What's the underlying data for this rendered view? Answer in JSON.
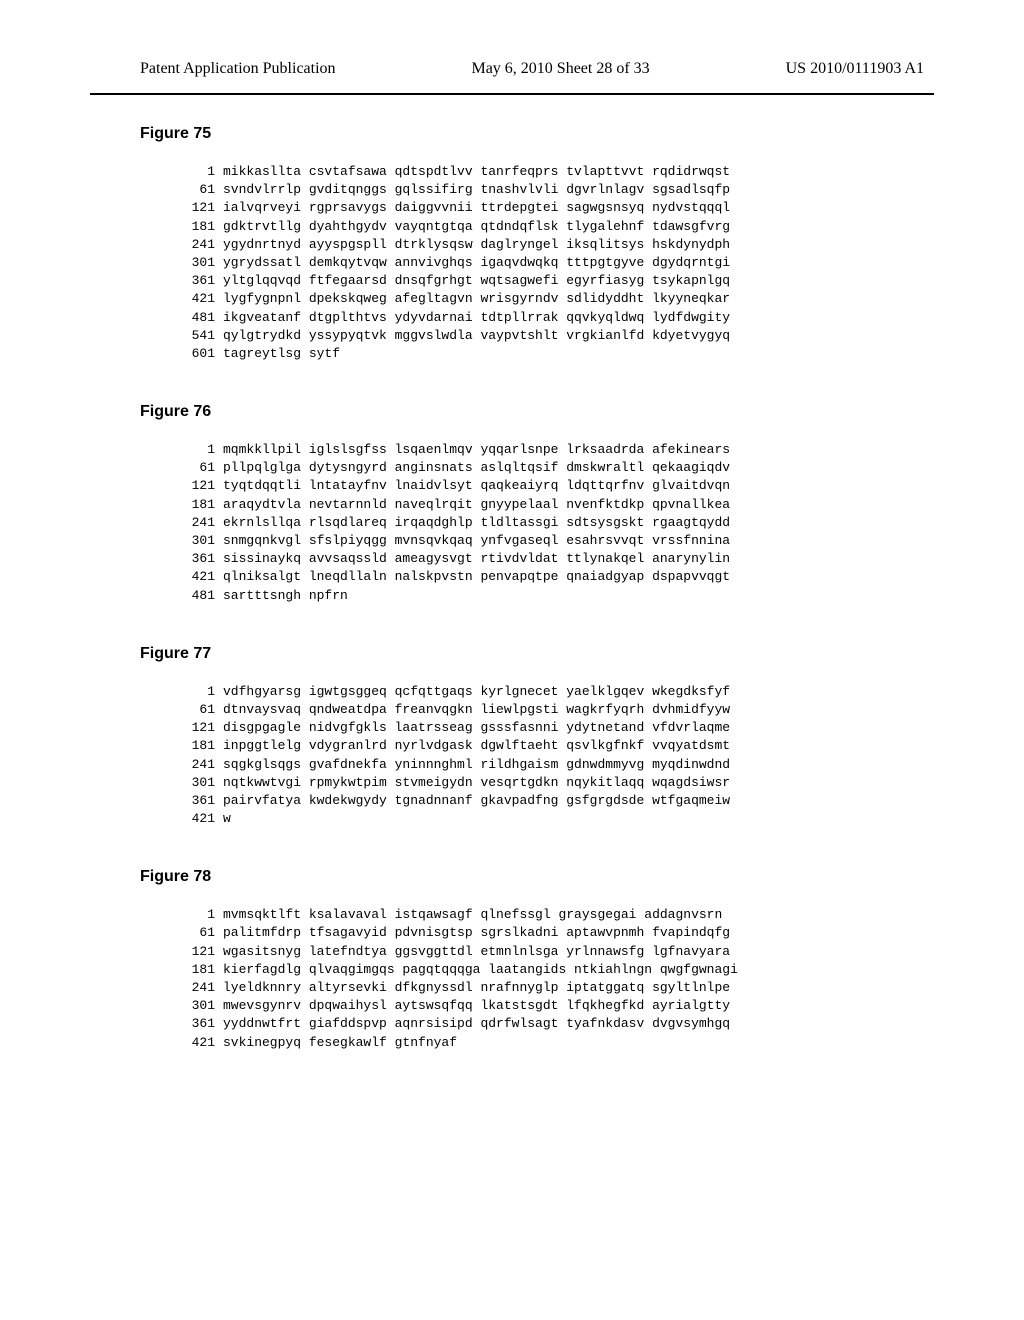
{
  "header": {
    "left": "Patent Application Publication",
    "center": "May 6, 2010  Sheet 28 of 33",
    "right": "US 2010/0111903 A1"
  },
  "figures": [
    {
      "title": "Figure 75",
      "lines": [
        {
          "num": "1",
          "seq": "mikkasllta csvtafsawa qdtspdtlvv tanrfeqprs tvlapttvvt rqdidrwqst"
        },
        {
          "num": "61",
          "seq": "svndvlrrlp gvditqnggs gqlssifirg tnashvlvli dgvrlnlagv sgsadlsqfp"
        },
        {
          "num": "121",
          "seq": "ialvqrveyi rgprsavygs daiggvvnii ttrdepgtei sagwgsnsyq nydvstqqql"
        },
        {
          "num": "181",
          "seq": "gdktrvtllg dyahthgydv vayqntgtqa qtdndqflsk tlygalehnf tdawsgfvrg"
        },
        {
          "num": "241",
          "seq": "ygydnrtnyd ayyspgspll dtrklysqsw daglryngel iksqlitsys hskdynydph"
        },
        {
          "num": "301",
          "seq": "ygrydssatl demkqytvqw annvivghqs igaqvdwqkq tttpgtgyve dgydqrntgi"
        },
        {
          "num": "361",
          "seq": "yltglqqvqd ftfegaarsd dnsqfgrhgt wqtsagwefi egyrfiasyg tsykapnlgq"
        },
        {
          "num": "421",
          "seq": "lygfygnpnl dpekskqweg afegltagvn wrisgyrndv sdlidyddht lkyyneqkar"
        },
        {
          "num": "481",
          "seq": "ikgveatanf dtgplthtvs ydyvdarnai tdtpllrrak qqvkyqldwq lydfdwgity"
        },
        {
          "num": "541",
          "seq": "qylgtrydkd yssypyqtvk mggvslwdla vaypvtshlt vrgkianlfd kdyetvygyq"
        },
        {
          "num": "601",
          "seq": "tagreytlsg sytf"
        }
      ]
    },
    {
      "title": "Figure 76",
      "lines": [
        {
          "num": "1",
          "seq": "mqmkkllpil iglslsgfss lsqaenlmqv yqqarlsnpe lrksaadrda afekinears"
        },
        {
          "num": "61",
          "seq": "pllpqlglga dytysngyrd anginsnats aslqltqsif dmskwraltl qekaagiqdv"
        },
        {
          "num": "121",
          "seq": "tyqtdqqtli lntatayfnv lnaidvlsyt qaqkeaiyrq ldqttqrfnv glvaitdvqn"
        },
        {
          "num": "181",
          "seq": "araqydtvla nevtarnnld naveqlrqit gnyypelaal nvenfktdkp qpvnallkea"
        },
        {
          "num": "241",
          "seq": "ekrnlsllqa rlsqdlareq irqaqdghlp tldltassgi sdtsysgskt rgaagtqydd"
        },
        {
          "num": "301",
          "seq": "snmgqnkvgl sfslpiyqgg mvnsqvkqaq ynfvgaseql esahrsvvqt vrssfnnina"
        },
        {
          "num": "361",
          "seq": "sissinaykq avvsaqssld ameagysvgt rtivdvldat ttlynakqel anarynylin"
        },
        {
          "num": "421",
          "seq": "qlniksalgt lneqdllaln nalskpvstn penvapqtpe qnaiadgyap dspapvvqgt"
        },
        {
          "num": "481",
          "seq": "sartttsngh npfrn"
        }
      ]
    },
    {
      "title": "Figure 77",
      "lines": [
        {
          "num": "1",
          "seq": "vdfhgyarsg igwtgsggeq qcfqttgaqs kyrlgnecet yaelklgqev wkegdksfyf"
        },
        {
          "num": "61",
          "seq": "dtnvaysvaq qndweatdpa freanvqgkn liewlpgsti wagkrfyqrh dvhmidfyyw"
        },
        {
          "num": "121",
          "seq": "disgpgagle nidvgfgkls laatrsseag gsssfasnni ydytnetand vfdvrlaqme"
        },
        {
          "num": "181",
          "seq": "inpggtlelg vdygranlrd nyrlvdgask dgwlftaeht qsvlkgfnkf vvqyatdsmt"
        },
        {
          "num": "241",
          "seq": "sqgkglsqgs gvafdnekfa yninnnghml rildhgaism gdnwdmmyvg myqdinwdnd"
        },
        {
          "num": "301",
          "seq": "nqtkwwtvgi rpmykwtpim stvmeigydn vesqrtgdkn nqykitlaqq wqagdsiwsr"
        },
        {
          "num": "361",
          "seq": "pairvfatya kwdekwgydy tgnadnnanf gkavpadfng gsfgrgdsde wtfgaqmeiw"
        },
        {
          "num": "421",
          "seq": "w"
        }
      ]
    },
    {
      "title": "Figure 78",
      "lines": [
        {
          "num": "1",
          "seq": "mvmsqktlft ksalavaval istqawsagf qlnefssgl graysgegai addagnvsrn"
        },
        {
          "num": "61",
          "seq": "palitmfdrp tfsagavyid pdvnisgtsp sgrslkadni aptawvpnmh fvapindqfg"
        },
        {
          "num": "121",
          "seq": "wgasitsnyg latefndtya ggsvggttdl etmnlnlsga yrlnnawsfg lgfnavyara"
        },
        {
          "num": "181",
          "seq": "kierfagdlg qlvaqgimgqs pagqtqqqga laatangids ntkiahlngn qwgfgwnagi"
        },
        {
          "num": "241",
          "seq": "lyeldknnry altyrsevki dfkgnyssdl nrafnnyglp iptatggatq sgyltlnlpe"
        },
        {
          "num": "301",
          "seq": "mwevsgynrv dpqwaihysl aytswsqfqq lkatstsgdt lfqkhegfkd ayrialgtty"
        },
        {
          "num": "361",
          "seq": "yyddnwtfrt giafddspvp aqnrsisipd qdrfwlsagt tyafnkdasv dvgvsymhgq"
        },
        {
          "num": "421",
          "seq": "svkinegpyq fesegkawlf gtnfnyaf"
        }
      ]
    }
  ]
}
